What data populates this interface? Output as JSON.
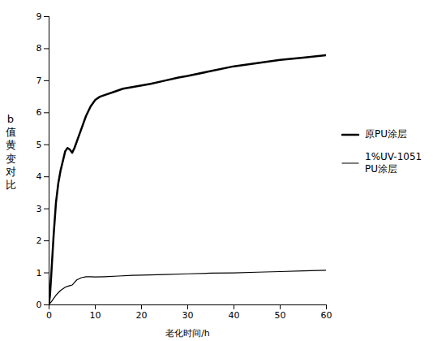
{
  "chart_data": {
    "type": "line",
    "xlabel": "老化时间/h",
    "ylabel": "b\n值\n黄\n变\n对\n比",
    "xlim": [
      0,
      60
    ],
    "ylim": [
      0,
      9
    ],
    "xticks": [
      0,
      10,
      20,
      30,
      40,
      50,
      60
    ],
    "yticks": [
      0,
      1,
      2,
      3,
      4,
      5,
      6,
      7,
      8,
      9
    ],
    "grid": false,
    "legend": "right",
    "series": [
      {
        "name": "原PU涂层",
        "color": "#000000",
        "x": [
          0,
          0.2,
          0.5,
          1,
          1.5,
          2,
          2.5,
          3,
          3.5,
          4,
          4.5,
          5,
          5.5,
          6,
          7,
          8,
          9,
          10,
          11,
          12,
          14,
          16,
          18,
          20,
          22,
          25,
          28,
          30,
          35,
          40,
          45,
          50,
          55,
          60
        ],
        "values": [
          0.05,
          0.3,
          1.0,
          2.2,
          3.2,
          3.8,
          4.2,
          4.5,
          4.8,
          4.9,
          4.85,
          4.75,
          4.9,
          5.1,
          5.5,
          5.9,
          6.2,
          6.4,
          6.5,
          6.55,
          6.65,
          6.75,
          6.8,
          6.85,
          6.9,
          7.0,
          7.1,
          7.15,
          7.3,
          7.45,
          7.55,
          7.65,
          7.72,
          7.8
        ]
      },
      {
        "name": "1%UV-1051\nPU涂层",
        "color": "#000000",
        "x": [
          0,
          0.2,
          0.5,
          1,
          1.5,
          2,
          2.5,
          3,
          3.5,
          4,
          4.5,
          5,
          5.5,
          6,
          7,
          8,
          9,
          10,
          12,
          15,
          18,
          20,
          25,
          30,
          35,
          40,
          45,
          50,
          55,
          60
        ],
        "values": [
          0.02,
          0.05,
          0.1,
          0.2,
          0.3,
          0.38,
          0.45,
          0.5,
          0.55,
          0.58,
          0.6,
          0.62,
          0.7,
          0.78,
          0.85,
          0.88,
          0.88,
          0.87,
          0.88,
          0.9,
          0.92,
          0.93,
          0.95,
          0.97,
          0.99,
          1.0,
          1.02,
          1.04,
          1.06,
          1.08
        ]
      }
    ]
  }
}
